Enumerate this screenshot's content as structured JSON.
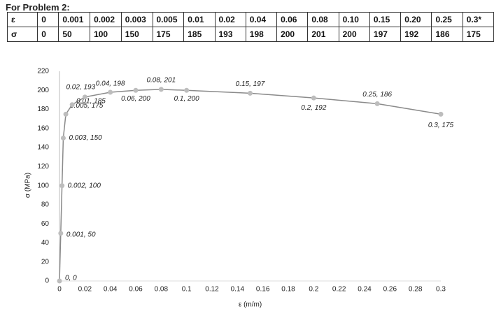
{
  "heading": "For Problem 2:",
  "table": {
    "rows": [
      [
        "ε",
        "0",
        "0.001",
        "0.002",
        "0.003",
        "0.005",
        "0.01",
        "0.02",
        "0.04",
        "0.06",
        "0.08",
        "0.10",
        "0.15",
        "0.20",
        "0.25",
        "0.3*"
      ],
      [
        "σ",
        "0",
        "50",
        "100",
        "150",
        "175",
        "185",
        "193",
        "198",
        "200",
        "201",
        "200",
        "197",
        "192",
        "186",
        "175"
      ]
    ]
  },
  "chart_data": {
    "type": "line",
    "x": [
      0,
      0.001,
      0.002,
      0.003,
      0.005,
      0.01,
      0.02,
      0.04,
      0.06,
      0.08,
      0.1,
      0.15,
      0.2,
      0.25,
      0.3
    ],
    "values": [
      0,
      50,
      100,
      150,
      175,
      185,
      193,
      198,
      200,
      201,
      200,
      197,
      192,
      186,
      175
    ],
    "value_labels": [
      "0, 0",
      "0.001, 50",
      "0.002, 100",
      "0.003, 150",
      "0.005, 175",
      "0.01, 185",
      "0.02, 193",
      "0.04, 198",
      "0.06, 200",
      "0.08, 201",
      "0.1, 200",
      "0.15, 197",
      "0.2, 192",
      "0.25, 186",
      "0.3, 175"
    ],
    "color": "#8a8a8a",
    "x_label": "ε (m/m)",
    "y_label": "σ (MPa)",
    "xlim": [
      0,
      0.3
    ],
    "xticks": [
      0,
      0.02,
      0.04,
      0.06,
      0.08,
      0.1,
      0.12,
      0.14,
      0.16,
      0.18,
      0.2,
      0.22,
      0.24,
      0.26,
      0.28,
      0.3
    ],
    "ylim": [
      0,
      220
    ],
    "yticks": [
      0,
      20,
      40,
      60,
      80,
      100,
      120,
      140,
      160,
      180,
      200,
      220
    ]
  }
}
